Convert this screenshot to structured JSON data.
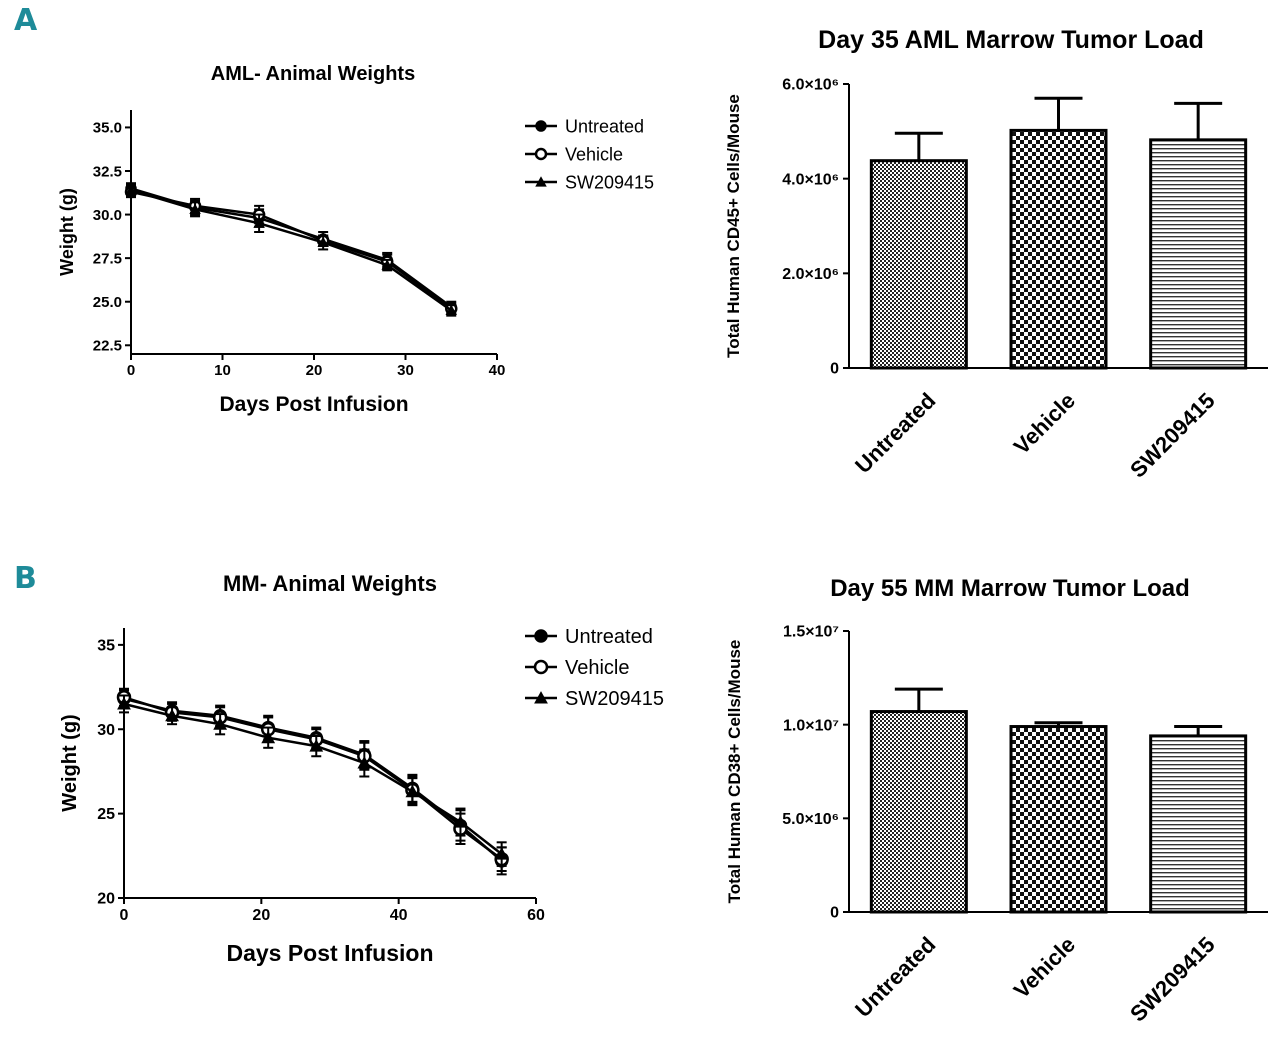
{
  "panels": {
    "A": {
      "letter": "A"
    },
    "B": {
      "letter": "B"
    }
  },
  "chart_data": [
    {
      "id": "aml-weights",
      "type": "line",
      "title": "AML- Animal Weights",
      "xlabel": "Days Post Infusion",
      "ylabel": "Weight (g)",
      "xlim": [
        0,
        40
      ],
      "ylim": [
        22.0,
        36.0
      ],
      "xticks": [
        0,
        10,
        20,
        30,
        40
      ],
      "xtick_labels": [
        "0",
        "10",
        "20",
        "30",
        "40"
      ],
      "yticks": [
        22.5,
        25.0,
        27.5,
        30.0,
        32.5,
        35.0
      ],
      "ytick_labels": [
        "22.5",
        "25.0",
        "27.5",
        "30.0",
        "32.5",
        "35.0"
      ],
      "legend_position": "right",
      "x": [
        0,
        7,
        14,
        21,
        28,
        35
      ],
      "series": [
        {
          "name": "Untreated",
          "marker": "filled-circle",
          "values": [
            31.5,
            30.4,
            29.8,
            28.6,
            27.4,
            24.7
          ],
          "errors": [
            0.3,
            0.4,
            0.5,
            0.4,
            0.4,
            0.3
          ]
        },
        {
          "name": "Vehicle",
          "marker": "open-circle",
          "values": [
            31.3,
            30.5,
            30.0,
            28.5,
            27.3,
            24.6
          ],
          "errors": [
            0.3,
            0.4,
            0.5,
            0.3,
            0.4,
            0.3
          ]
        },
        {
          "name": "SW209415",
          "marker": "triangle",
          "values": [
            31.4,
            30.3,
            29.5,
            28.4,
            27.1,
            24.5
          ],
          "errors": [
            0.3,
            0.4,
            0.5,
            0.4,
            0.3,
            0.3
          ]
        }
      ]
    },
    {
      "id": "aml-tumor",
      "type": "bar",
      "title": "Day 35 AML Marrow  Tumor  Load",
      "ylabel": "Total Human CD45+  Cells/Mouse",
      "xlabel": "",
      "ylim": [
        0,
        6000000
      ],
      "yticks": [
        0,
        2000000,
        4000000,
        6000000
      ],
      "ytick_labels": [
        "0",
        "2.0×10⁶",
        "4.0×10⁶",
        "6.0×10⁶"
      ],
      "categories": [
        "Untreated",
        "Vehicle",
        "SW209415"
      ],
      "values": [
        4380000,
        5020000,
        4820000
      ],
      "errors": [
        580000,
        680000,
        770000
      ],
      "patterns": [
        "checker-small",
        "checker-large",
        "hlines"
      ]
    },
    {
      "id": "mm-weights",
      "type": "line",
      "title": "MM- Animal Weights",
      "xlabel": "Days Post Infusion",
      "ylabel": "Weight (g)",
      "xlim": [
        0,
        60
      ],
      "ylim": [
        20,
        36
      ],
      "xticks": [
        0,
        20,
        40,
        60
      ],
      "xtick_labels": [
        "0",
        "20",
        "40",
        "60"
      ],
      "yticks": [
        20,
        25,
        30,
        35
      ],
      "ytick_labels": [
        "20",
        "25",
        "30",
        "35"
      ],
      "legend_position": "right",
      "x": [
        0,
        7,
        14,
        21,
        28,
        35,
        42,
        49,
        55
      ],
      "series": [
        {
          "name": "Untreated",
          "marker": "filled-circle",
          "values": [
            31.8,
            31.1,
            30.8,
            30.1,
            29.5,
            28.5,
            26.5,
            24.3,
            22.2
          ],
          "errors": [
            0.5,
            0.5,
            0.6,
            0.7,
            0.6,
            0.8,
            0.8,
            0.9,
            0.8
          ]
        },
        {
          "name": "Vehicle",
          "marker": "open-circle",
          "values": [
            31.9,
            31.0,
            30.7,
            30.0,
            29.4,
            28.4,
            26.4,
            24.1,
            22.3
          ],
          "errors": [
            0.5,
            0.5,
            0.6,
            0.7,
            0.6,
            0.8,
            0.8,
            0.9,
            0.7
          ]
        },
        {
          "name": "SW209415",
          "marker": "triangle",
          "values": [
            31.5,
            30.8,
            30.3,
            29.5,
            29.0,
            28.0,
            26.3,
            24.5,
            22.6
          ],
          "errors": [
            0.5,
            0.5,
            0.6,
            0.6,
            0.6,
            0.8,
            0.8,
            0.8,
            0.7
          ]
        }
      ]
    },
    {
      "id": "mm-tumor",
      "type": "bar",
      "title": "Day 55 MM Marrow  Tumor  Load",
      "ylabel": "Total Human CD38+  Cells/Mouse",
      "xlabel": "",
      "ylim": [
        0,
        15000000
      ],
      "yticks": [
        0,
        5000000,
        10000000,
        15000000
      ],
      "ytick_labels": [
        "0",
        "5.0×10⁶",
        "1.0×10⁷",
        "1.5×10⁷"
      ],
      "categories": [
        "Untreated",
        "Vehicle",
        "SW209415"
      ],
      "values": [
        10700000,
        9900000,
        9400000
      ],
      "errors": [
        1200000,
        200000,
        500000
      ],
      "patterns": [
        "checker-small",
        "checker-large",
        "hlines"
      ]
    }
  ]
}
